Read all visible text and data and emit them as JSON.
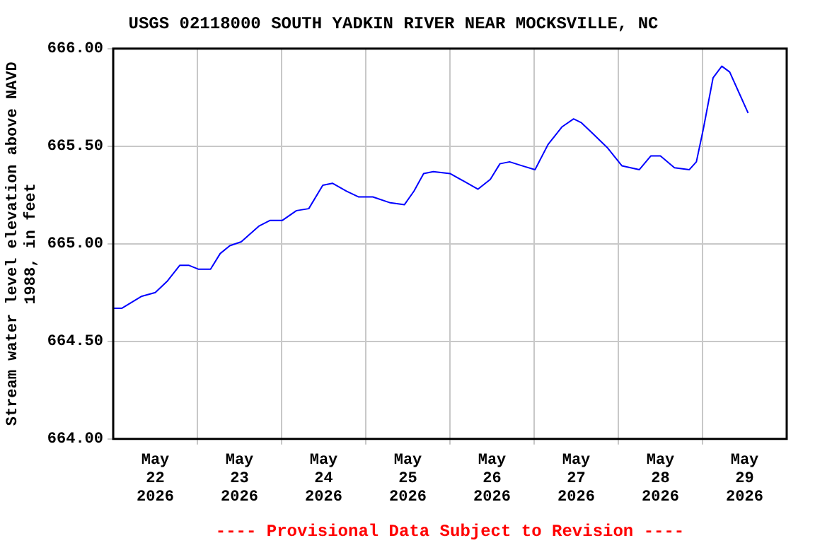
{
  "chart_data": {
    "type": "line",
    "title": "USGS 02118000 SOUTH YADKIN RIVER NEAR MOCKSVILLE, NC",
    "ylabel": "Stream water level elevation above NAVD 1988, in feet",
    "annotations": [
      "---- Provisional Data Subject to Revision ----"
    ],
    "x": [
      "2026-05-22T00:00",
      "2026-05-22T02:30",
      "2026-05-22T08:00",
      "2026-05-22T12:00",
      "2026-05-22T15:30",
      "2026-05-22T19:00",
      "2026-05-22T21:30",
      "2026-05-23T00:15",
      "2026-05-23T03:45",
      "2026-05-23T06:30",
      "2026-05-23T09:15",
      "2026-05-23T12:30",
      "2026-05-23T17:30",
      "2026-05-23T20:45",
      "2026-05-24T00:15",
      "2026-05-24T04:15",
      "2026-05-24T07:45",
      "2026-05-24T11:45",
      "2026-05-24T14:30",
      "2026-05-24T18:30",
      "2026-05-24T22:00",
      "2026-05-25T02:00",
      "2026-05-25T07:00",
      "2026-05-25T11:00",
      "2026-05-25T13:45",
      "2026-05-25T16:30",
      "2026-05-25T19:15",
      "2026-05-26T00:00",
      "2026-05-26T04:00",
      "2026-05-26T08:00",
      "2026-05-26T11:30",
      "2026-05-26T14:15",
      "2026-05-26T17:00",
      "2026-05-26T20:30",
      "2026-05-27T00:15",
      "2026-05-27T04:00",
      "2026-05-27T08:00",
      "2026-05-27T11:15",
      "2026-05-27T13:30",
      "2026-05-27T17:00",
      "2026-05-27T21:00",
      "2026-05-28T01:00",
      "2026-05-28T06:00",
      "2026-05-28T09:15",
      "2026-05-28T12:00",
      "2026-05-28T16:00",
      "2026-05-28T20:15",
      "2026-05-28T22:15",
      "2026-05-29T00:15",
      "2026-05-29T03:00",
      "2026-05-29T05:30",
      "2026-05-29T07:45",
      "2026-05-29T10:30",
      "2026-05-29T13:00"
    ],
    "series": [
      {
        "color": "#0000ff",
        "values": [
          664.67,
          664.67,
          664.73,
          664.75,
          664.81,
          664.89,
          664.89,
          664.87,
          664.87,
          664.95,
          664.99,
          665.01,
          665.09,
          665.12,
          665.12,
          665.17,
          665.18,
          665.3,
          665.31,
          665.27,
          665.24,
          665.24,
          665.21,
          665.2,
          665.27,
          665.36,
          665.37,
          665.36,
          665.32,
          665.28,
          665.33,
          665.41,
          665.42,
          665.4,
          665.38,
          665.51,
          665.6,
          665.64,
          665.62,
          665.56,
          665.49,
          665.4,
          665.38,
          665.45,
          665.45,
          665.39,
          665.38,
          665.42,
          665.59,
          665.85,
          665.91,
          665.88,
          665.77,
          665.67
        ]
      }
    ],
    "xlim": [
      "2026-05-22T00:00",
      "2026-05-30T00:00"
    ],
    "xticks": [
      {
        "value": "2026-05-22T12:00",
        "label": "May 22 2026"
      },
      {
        "value": "2026-05-23T00:00",
        "label": null
      },
      {
        "value": "2026-05-23T12:00",
        "label": "May 23 2026"
      },
      {
        "value": "2026-05-24T00:00",
        "label": null
      },
      {
        "value": "2026-05-24T12:00",
        "label": "May 24 2026"
      },
      {
        "value": "2026-05-25T00:00",
        "label": null
      },
      {
        "value": "2026-05-25T12:00",
        "label": "May 25 2026"
      },
      {
        "value": "2026-05-26T00:00",
        "label": null
      },
      {
        "value": "2026-05-26T12:00",
        "label": "May 26 2026"
      },
      {
        "value": "2026-05-27T00:00",
        "label": null
      },
      {
        "value": "2026-05-27T12:00",
        "label": "May 27 2026"
      },
      {
        "value": "2026-05-28T00:00",
        "label": null
      },
      {
        "value": "2026-05-28T12:00",
        "label": "May 28 2026"
      },
      {
        "value": "2026-05-29T00:00",
        "label": null
      },
      {
        "value": "2026-05-29T12:00",
        "label": "May 29 2026"
      }
    ],
    "ylim": [
      664,
      666
    ],
    "yticks": [
      {
        "value": 664,
        "label": "664.00"
      },
      {
        "value": 664.5,
        "label": "664.50"
      },
      {
        "value": 665,
        "label": "665.00"
      },
      {
        "value": 665.5,
        "label": "665.50"
      },
      {
        "value": 666,
        "label": "666.00"
      }
    ],
    "grid": true,
    "legend": false,
    "marker": "none",
    "line_style": "solid"
  }
}
